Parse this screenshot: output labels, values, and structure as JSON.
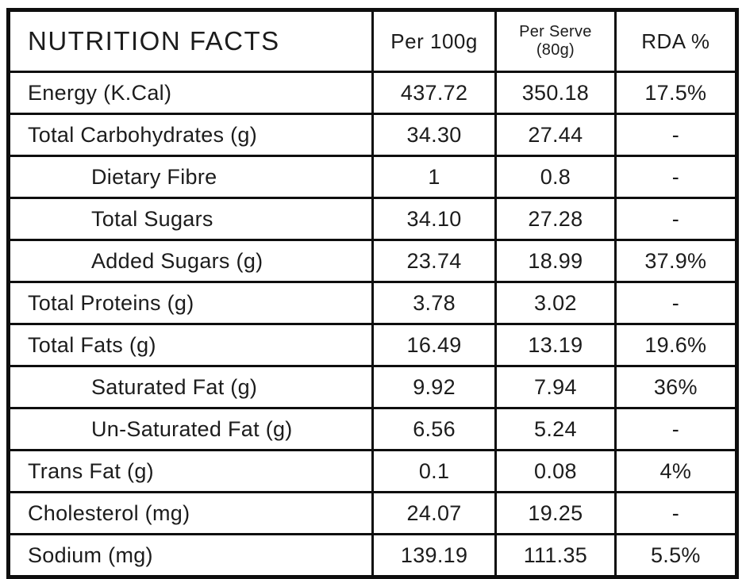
{
  "table": {
    "header": {
      "title": "NUTRITION FACTS",
      "per_100g": "Per 100g",
      "per_serve": "Per Serve\n(80g)",
      "rda": "RDA %"
    },
    "rows": [
      {
        "label": "Energy (K.Cal)",
        "indent": false,
        "per_100g": "437.72",
        "per_serve": "350.18",
        "rda": "17.5%"
      },
      {
        "label": "Total Carbohydrates (g)",
        "indent": false,
        "per_100g": "34.30",
        "per_serve": "27.44",
        "rda": "-"
      },
      {
        "label": "Dietary Fibre",
        "indent": true,
        "per_100g": "1",
        "per_serve": "0.8",
        "rda": "-"
      },
      {
        "label": "Total Sugars",
        "indent": true,
        "per_100g": "34.10",
        "per_serve": "27.28",
        "rda": "-"
      },
      {
        "label": "Added Sugars (g)",
        "indent": true,
        "per_100g": "23.74",
        "per_serve": "18.99",
        "rda": "37.9%"
      },
      {
        "label": "Total Proteins (g)",
        "indent": false,
        "per_100g": "3.78",
        "per_serve": "3.02",
        "rda": "-"
      },
      {
        "label": "Total Fats (g)",
        "indent": false,
        "per_100g": "16.49",
        "per_serve": "13.19",
        "rda": "19.6%"
      },
      {
        "label": "Saturated Fat (g)",
        "indent": true,
        "per_100g": "9.92",
        "per_serve": "7.94",
        "rda": "36%"
      },
      {
        "label": "Un-Saturated Fat (g)",
        "indent": true,
        "per_100g": "6.56",
        "per_serve": "5.24",
        "rda": "-"
      },
      {
        "label": "Trans Fat (g)",
        "indent": false,
        "per_100g": "0.1",
        "per_serve": "0.08",
        "rda": "4%"
      },
      {
        "label": "Cholesterol (mg)",
        "indent": false,
        "per_100g": "24.07",
        "per_serve": "19.25",
        "rda": "-"
      },
      {
        "label": "Sodium (mg)",
        "indent": false,
        "per_100g": "139.19",
        "per_serve": "111.35",
        "rda": "5.5%"
      }
    ]
  }
}
